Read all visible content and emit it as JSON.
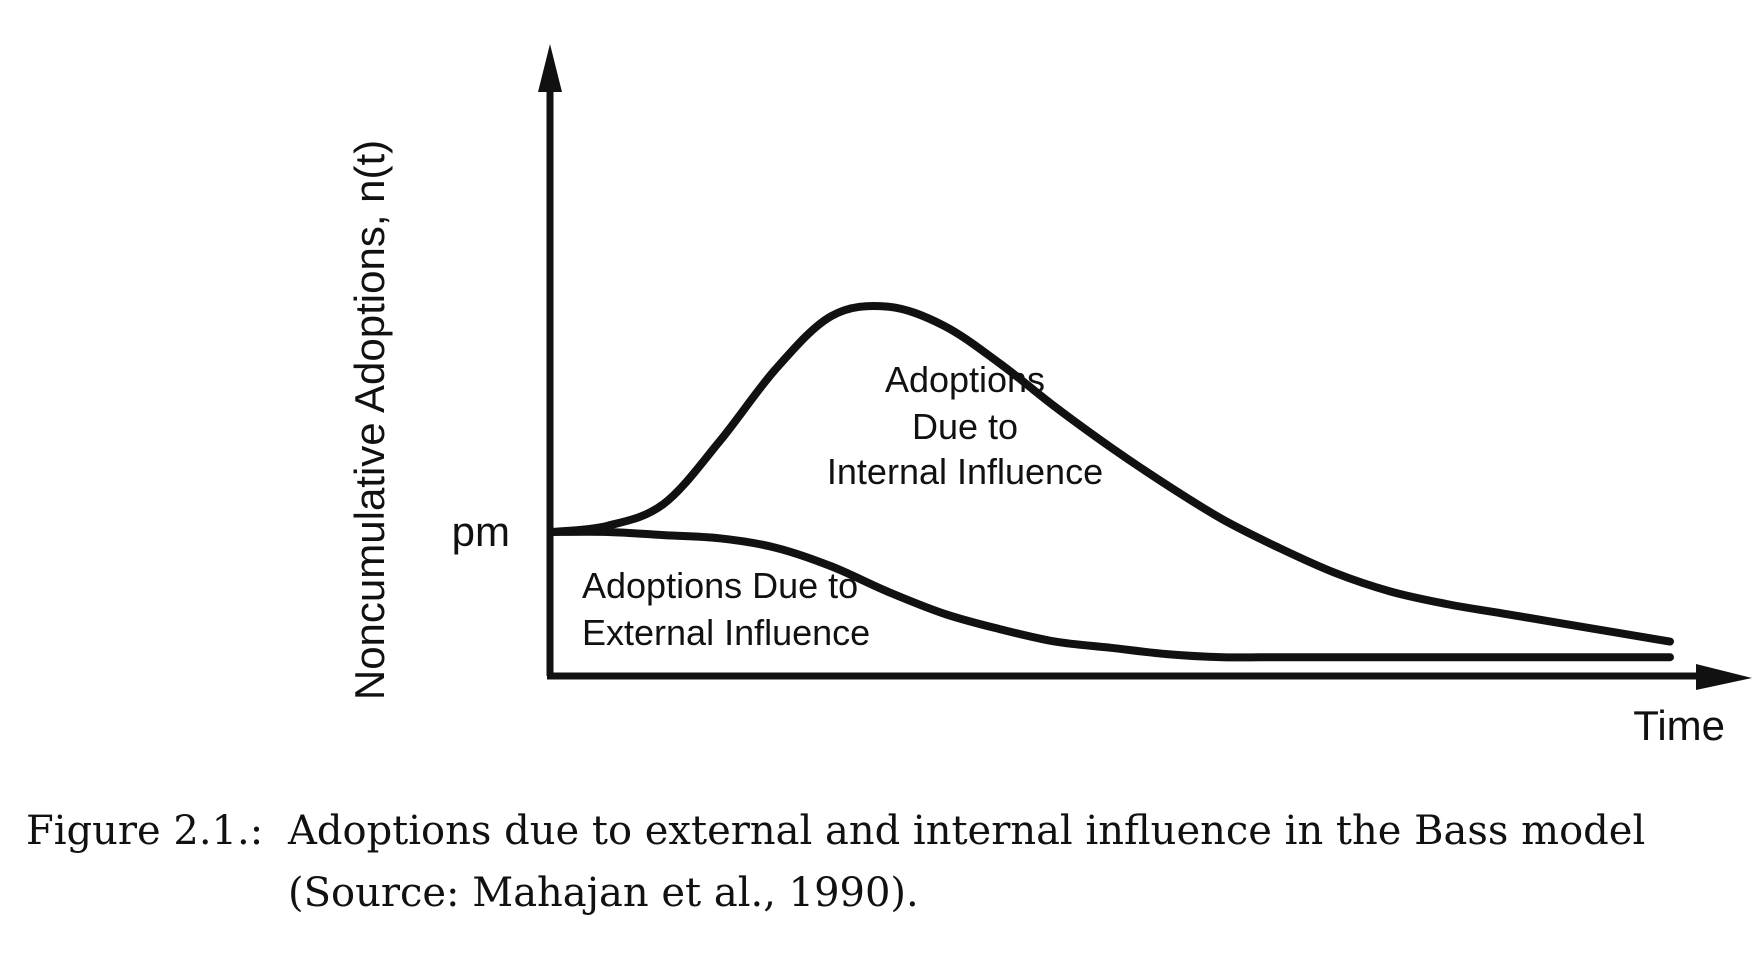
{
  "chart_data": {
    "type": "line",
    "xlabel": "Time",
    "ylabel": "Noncumulative Adoptions, n(t)",
    "y_tick_label": "pm",
    "x_ticks": [],
    "grid": false,
    "legend": "none",
    "series": [
      {
        "x": [
          0,
          0.5,
          1,
          1.5,
          2,
          2.5,
          3,
          3.5,
          4,
          4.5,
          5,
          5.5,
          6,
          6.5,
          7,
          7.5,
          8,
          8.5,
          9,
          9.5,
          10
        ],
        "values": [
          0.46,
          0.48,
          0.55,
          0.75,
          0.98,
          1.15,
          1.18,
          1.12,
          1.0,
          0.86,
          0.73,
          0.61,
          0.5,
          0.41,
          0.33,
          0.27,
          0.23,
          0.2,
          0.17,
          0.14,
          0.11
        ]
      },
      {
        "x": [
          0,
          0.5,
          1,
          1.5,
          2,
          2.5,
          3,
          3.5,
          4,
          4.5,
          5,
          5.5,
          6,
          6.5,
          7,
          7.5,
          8,
          8.5,
          9,
          9.5,
          10
        ],
        "values": [
          0.46,
          0.46,
          0.45,
          0.44,
          0.41,
          0.35,
          0.27,
          0.2,
          0.15,
          0.11,
          0.09,
          0.07,
          0.06,
          0.06,
          0.06,
          0.06,
          0.06,
          0.06,
          0.06,
          0.06,
          0.06
        ]
      }
    ],
    "annotations": {
      "internal": [
        "Adoptions",
        "Due to",
        "Internal Influence"
      ],
      "external": [
        "Adoptions Due to",
        "External Influence"
      ]
    }
  },
  "caption": {
    "label": "Figure 2.1.:",
    "line1": "Adoptions due to external and internal influence in the Bass model",
    "line2": "(Source: Mahajan et al., 1990)."
  }
}
